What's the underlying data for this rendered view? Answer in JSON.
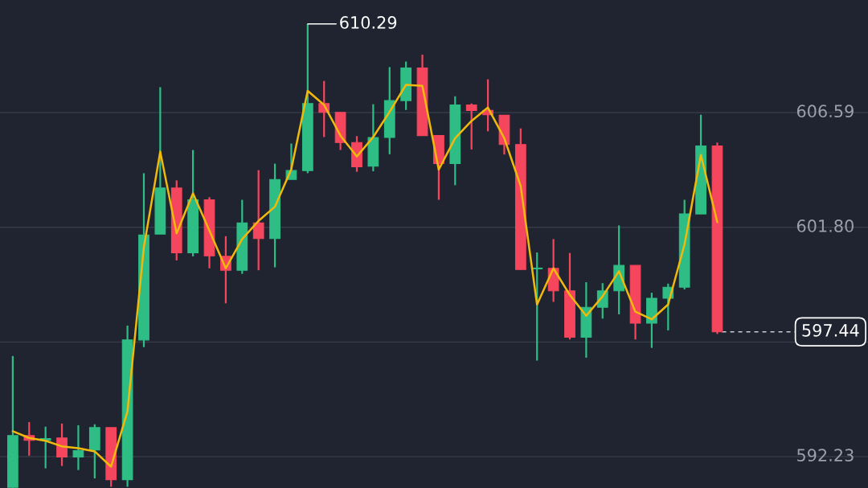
{
  "chart_data": {
    "type": "candlestick",
    "categories": [
      null,
      null,
      null,
      null,
      null,
      null,
      null,
      null,
      null,
      null,
      null,
      null,
      null,
      null,
      null,
      null,
      null,
      null,
      null,
      null,
      null,
      null,
      null,
      null,
      null,
      null,
      null,
      null,
      null,
      null,
      null,
      null,
      null,
      null,
      null,
      null,
      null,
      null,
      null,
      null,
      null,
      null,
      null,
      null
    ],
    "ohlc": [
      [
        590.95,
        596.43,
        590.93,
        593.11
      ],
      [
        593.11,
        593.67,
        592.27,
        592.91
      ],
      [
        592.91,
        593.48,
        591.74,
        592.98
      ],
      [
        593.01,
        593.61,
        591.84,
        592.21
      ],
      [
        592.21,
        593.54,
        591.67,
        592.48
      ],
      [
        592.51,
        593.58,
        591.32,
        593.44
      ],
      [
        593.44,
        593.44,
        590.97,
        591.27
      ],
      [
        591.27,
        597.7,
        590.97,
        597.1
      ],
      [
        597.1,
        604.06,
        596.8,
        601.48
      ],
      [
        601.52,
        607.65,
        601.52,
        603.44
      ],
      [
        603.44,
        603.76,
        600.42,
        600.74
      ],
      [
        600.74,
        605.03,
        600.59,
        602.95
      ],
      [
        602.95,
        603.06,
        600.09,
        600.61
      ],
      [
        600.59,
        601.43,
        598.63,
        600.01
      ],
      [
        600.01,
        602.95,
        599.86,
        601.98
      ],
      [
        601.98,
        604.19,
        600.01,
        601.33
      ],
      [
        601.33,
        604.46,
        600.13,
        603.8
      ],
      [
        603.8,
        605.3,
        603.8,
        604.17
      ],
      [
        604.17,
        610.29,
        604.06,
        606.97
      ],
      [
        606.97,
        607.91,
        605.57,
        606.6
      ],
      [
        606.6,
        606.6,
        605.03,
        605.34
      ],
      [
        605.34,
        605.61,
        604.12,
        604.33
      ],
      [
        604.35,
        606.94,
        604.14,
        605.55
      ],
      [
        605.55,
        608.49,
        604.85,
        607.09
      ],
      [
        607.09,
        608.72,
        606.7,
        608.45
      ],
      [
        608.45,
        609.01,
        605.63,
        605.63
      ],
      [
        605.63,
        605.63,
        602.95,
        604.46
      ],
      [
        604.46,
        607.27,
        603.56,
        606.91
      ],
      [
        606.91,
        606.97,
        605.05,
        606.68
      ],
      [
        606.68,
        607.98,
        605.81,
        606.5
      ],
      [
        606.48,
        606.48,
        604.84,
        605.26
      ],
      [
        605.26,
        605.93,
        600.04,
        600.04
      ],
      [
        600.07,
        600.75,
        596.24,
        600.1
      ],
      [
        600.09,
        601.31,
        598.69,
        599.15
      ],
      [
        599.15,
        600.73,
        597.12,
        597.21
      ],
      [
        597.21,
        599.51,
        596.36,
        598.46
      ],
      [
        598.46,
        599.47,
        597.99,
        599.15
      ],
      [
        599.15,
        601.88,
        598.17,
        600.21
      ],
      [
        600.21,
        600.21,
        597.12,
        597.8
      ],
      [
        597.8,
        599.07,
        596.77,
        598.84
      ],
      [
        598.84,
        599.45,
        597.5,
        599.3
      ],
      [
        599.3,
        602.95,
        599.21,
        602.36
      ],
      [
        602.36,
        606.5,
        602.36,
        605.2
      ],
      [
        605.2,
        605.34,
        597.35,
        597.44
      ]
    ],
    "colors": [
      "#2ebd85",
      "#f6465d",
      "#2ebd85",
      "#f6465d",
      "#2ebd85",
      "#2ebd85",
      "#f6465d",
      "#2ebd85",
      "#2ebd85",
      "#2ebd85",
      "#f6465d",
      "#2ebd85",
      "#f6465d",
      "#f6465d",
      "#2ebd85",
      "#f6465d",
      "#2ebd85",
      "#2ebd85",
      "#2ebd85",
      "#f6465d",
      "#f6465d",
      "#f6465d",
      "#2ebd85",
      "#2ebd85",
      "#2ebd85",
      "#f6465d",
      "#f6465d",
      "#2ebd85",
      "#f6465d",
      "#f6465d",
      "#f6465d",
      "#f6465d",
      "#2ebd85",
      "#f6465d",
      "#f6465d",
      "#2ebd85",
      "#2ebd85",
      "#2ebd85",
      "#f6465d",
      "#2ebd85",
      "#2ebd85",
      "#2ebd85",
      "#2ebd85",
      "#f6465d"
    ],
    "series": [
      {
        "type": "line",
        "color": "#f0b90b",
        "values": [
          593.29,
          593.01,
          592.89,
          592.66,
          592.58,
          592.45,
          591.81,
          594.12,
          600.97,
          604.96,
          601.55,
          603.22,
          601.67,
          600.09,
          601.31,
          602.07,
          602.66,
          604.23,
          607.5,
          606.91,
          605.63,
          604.76,
          605.57,
          606.62,
          607.75,
          607.71,
          604.21,
          605.52,
          606.24,
          606.8,
          605.52,
          603.53,
          598.58,
          600.09,
          598.98,
          598.11,
          598.92,
          599.97,
          598.28,
          597.96,
          598.58,
          601.08,
          604.82,
          602.02
        ]
      }
    ],
    "ylim": [
      590.92,
      611.29
    ],
    "yticks": [
      606.59,
      {
        "value": 601.8,
        "label": "601.80"
      },
      {
        "value": 597.01,
        "label": null
      },
      592.23
    ],
    "tick_labels": "y",
    "grid": "y",
    "annotations": [
      "610.29"
    ],
    "ref_lines": [
      {
        "axis": "y",
        "value": 597.44,
        "label": "597.44",
        "color": "#c8ccd2",
        "line_style": "dashed"
      }
    ]
  }
}
